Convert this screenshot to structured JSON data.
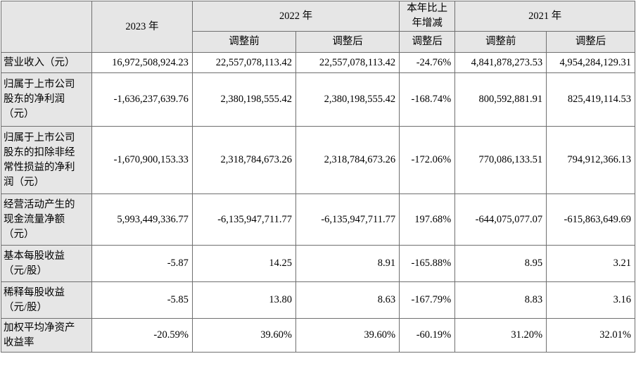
{
  "header": {
    "col_2023": "2023 年",
    "col_2022": "2022 年",
    "col_change": [
      "本年比上",
      "年增减"
    ],
    "col_2021": "2021 年",
    "before_adjust": "调整前",
    "after_adjust": "调整后"
  },
  "rows": [
    {
      "label": [
        "营业收入（元）"
      ],
      "values": [
        "16,972,508,924.23",
        "22,557,078,113.42",
        "22,557,078,113.42",
        "-24.76%",
        "4,841,878,273.53",
        "4,954,284,129.31"
      ]
    },
    {
      "label": [
        "归属于上市公司",
        "股东的净利润",
        "（元）"
      ],
      "values": [
        "-1,636,237,639.76",
        "2,380,198,555.42",
        "2,380,198,555.42",
        "-168.74%",
        "800,592,881.91",
        "825,419,114.53"
      ]
    },
    {
      "label": [
        "归属于上市公司",
        "股东的扣除非经",
        "常性损益的净利",
        "润（元）"
      ],
      "values": [
        "-1,670,900,153.33",
        "2,318,784,673.26",
        "2,318,784,673.26",
        "-172.06%",
        "770,086,133.51",
        "794,912,366.13"
      ]
    },
    {
      "label": [
        "经营活动产生的",
        "现金流量净额",
        "（元）"
      ],
      "values": [
        "5,993,449,336.77",
        "-6,135,947,711.77",
        "-6,135,947,711.77",
        "197.68%",
        "-644,075,077.07",
        "-615,863,649.69"
      ]
    },
    {
      "label": [
        "基本每股收益",
        "（元/股）"
      ],
      "values": [
        "-5.87",
        "14.25",
        "8.91",
        "-165.88%",
        "8.95",
        "3.21"
      ]
    },
    {
      "label": [
        "稀释每股收益",
        "（元/股）"
      ],
      "values": [
        "-5.85",
        "13.80",
        "8.63",
        "-167.79%",
        "8.83",
        "3.16"
      ]
    },
    {
      "label": [
        "加权平均净资产",
        "收益率"
      ],
      "values": [
        "-20.59%",
        "39.60%",
        "39.60%",
        "-60.19%",
        "31.20%",
        "32.01%"
      ]
    }
  ]
}
